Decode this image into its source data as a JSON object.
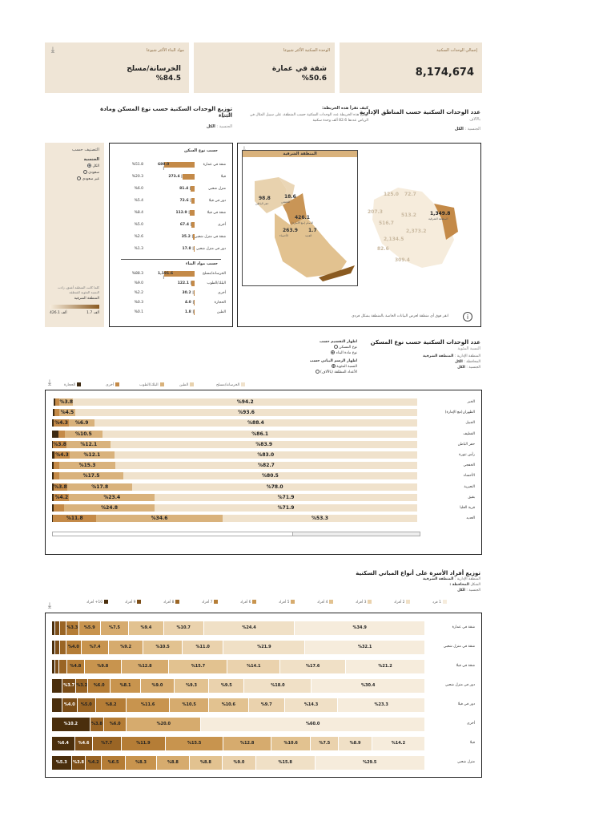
{
  "kpis": [
    {
      "label": "إجمالي الوحدات السكنية",
      "value": "8,174,674"
    },
    {
      "label": "الوحدة السكنية الأكثر شيوعا",
      "value": "شقة في عمارة",
      "value2": "%50.6"
    },
    {
      "label": "مواد البناء الأكثر شيوعا",
      "value": "الخرسانة/مسلح",
      "value2": "%84.5"
    }
  ],
  "sec1": {
    "title_right": "عدد الوحدات السكنية حسب المناطق الإدارية",
    "sub_right": "بالآلاف",
    "filter_right": "الكل",
    "filter_right_label": "الجنسية :",
    "howto_title": "كيف تقرأ هذه الخريطة:",
    "howto_text": "توضح هذه الخريطة عدد الوحدات السكنية حسب المنطقة، على سبيل المثال في الرياض عددها 82.6 ألف وحدة سكنية",
    "title_left": "توزيع الوحدات السكنية حسب نوع المسكن ومادة البناء",
    "sub_left": "بالآلاف",
    "filter_left": "الكل",
    "filter_left_label": "الجنسية :"
  },
  "classify": {
    "title": "التصنيف حسب",
    "group": "الجنسية",
    "options": [
      "الكل",
      "سعودي",
      "غير سعودي"
    ],
    "note": "كلما كانت المنطقة أغمق، زادت النسبة المئوية للمنطقة",
    "region": "المنطقة الشرقية",
    "scale_min": "1.7 ألف",
    "scale_max": "426.1 ألف"
  },
  "dwelling": {
    "title": "حسب نوع السكن",
    "rows": [
      {
        "label": "شقة في عمارة",
        "value": "689.0",
        "pct": "%51.8",
        "frac": 1.0
      },
      {
        "label": "فيلا",
        "value": "273.4",
        "pct": "%20.3",
        "frac": 0.4
      },
      {
        "label": "منزل شعبي",
        "value": "81.4",
        "pct": "%6.0",
        "frac": 0.12
      },
      {
        "label": "دور في فيلا",
        "value": "72.6",
        "pct": "%5.4",
        "frac": 0.11
      },
      {
        "label": "شقة في فيلا",
        "value": "112.9",
        "pct": "%8.4",
        "frac": 0.16
      },
      {
        "label": "أخرى",
        "value": "67.4",
        "pct": "%5.0",
        "frac": 0.1
      },
      {
        "label": "شقة في منزل شعبي",
        "value": "35.2",
        "pct": "%2.6",
        "frac": 0.05
      },
      {
        "label": "دور في منزل شعبي",
        "value": "17.8",
        "pct": "%1.3",
        "frac": 0.03
      }
    ]
  },
  "material": {
    "title": "حسب مواد البناء",
    "rows": [
      {
        "label": "الخرسانة/مسلح",
        "value": "1,191.6",
        "pct": "%88.3",
        "frac": 1.0
      },
      {
        "label": "البلك/الطوب",
        "value": "122.1",
        "pct": "%9.0",
        "frac": 0.1
      },
      {
        "label": "أخرى",
        "value": "30.2",
        "pct": "%2.2",
        "frac": 0.03
      },
      {
        "label": "الحجارة",
        "value": "4.0",
        "pct": "%0.3",
        "frac": 0.005
      },
      {
        "label": "الطين",
        "value": "1.8",
        "pct": "%0.1",
        "frac": 0.002
      }
    ]
  },
  "map": {
    "title": "المنطقة الشرقية",
    "info": "انقر فوق أي منطقة لعرض البيانات الخاصة بالمنطقة بشكل فردي",
    "labels": [
      {
        "v": "98.8",
        "n": "حفر الباطن"
      },
      {
        "v": "18.6",
        "n": "الخفجي"
      },
      {
        "v": "426.1",
        "n": "الدمام (مع الأمارة)"
      },
      {
        "v": "263.9",
        "n": "الأحساء"
      },
      {
        "v": "1.7",
        "n": "العديد"
      }
    ],
    "ksa": [
      {
        "v": "125.0"
      },
      {
        "v": "72.7"
      },
      {
        "v": "207.3"
      },
      {
        "v": "513.2"
      },
      {
        "v": "516.7"
      },
      {
        "v": "1,349.8",
        "n": "المنطقة الشرقية"
      },
      {
        "v": "2,134.5"
      },
      {
        "v": "2,373.2"
      },
      {
        "v": "82.6"
      },
      {
        "v": "309.4"
      }
    ]
  },
  "sec2": {
    "title": "عدد الوحدات السكنية حسب نوع المسكن",
    "sub": "النسبة المئوية",
    "f1_label": "المنطقة الإدارية :",
    "f1": "المنطقة الشرقية",
    "f2_label": "المحافظة :",
    "f2": "الكل",
    "f3_label": "الجنسية :",
    "f3": "الكل",
    "opt1_title": "اظهار التقسيم حسب",
    "opt1": [
      "نوع المسكن",
      "نوع مادة البناء"
    ],
    "opt2_title": "اظهار الرسم البياني حسب",
    "opt2": [
      "النسبة المئوية",
      "الأعداد المطلقة (بالآلاف)"
    ],
    "legend": [
      "الخرسانة/مسلح",
      "الطين",
      "البلك/الطوب",
      "أخرى",
      "الحجارة"
    ],
    "colors": [
      "#f0e2cc",
      "#e8d2ae",
      "#d9b27c",
      "#c48a48",
      "#3d2a12"
    ]
  },
  "chart2_data": {
    "type": "bar",
    "rows": [
      {
        "label": "الخبر",
        "segs": [
          94.2,
          0,
          3.8,
          1.2,
          0.4
        ],
        "labels": [
          "%94.2",
          "",
          "%3.8",
          "",
          ""
        ]
      },
      {
        "label": "الظهران(مع الإمارة)",
        "segs": [
          93.6,
          0,
          4.5,
          1.2,
          0.5
        ],
        "labels": [
          "%93.6",
          "",
          "%4.5",
          "",
          ""
        ]
      },
      {
        "label": "الجبيل",
        "segs": [
          88.4,
          0,
          6.9,
          4.3,
          0.4
        ],
        "labels": [
          "%88.4",
          "",
          "%6.9",
          "%4.3",
          ""
        ]
      },
      {
        "label": "القطيف",
        "segs": [
          86.1,
          0,
          10.5,
          1.7,
          1.7
        ],
        "labels": [
          "%86.1",
          "",
          "%10.5",
          "",
          ""
        ]
      },
      {
        "label": "حفر الباطن",
        "segs": [
          83.9,
          0,
          12.1,
          3.8,
          0.2
        ],
        "labels": [
          "%83.9",
          "",
          "%12.1",
          "%3.8",
          ""
        ]
      },
      {
        "label": "رأس تنورة",
        "segs": [
          83.0,
          0,
          12.1,
          4.3,
          0.6
        ],
        "labels": [
          "%83.0",
          "",
          "%12.1",
          "%4.3",
          ""
        ]
      },
      {
        "label": "الخفجي",
        "segs": [
          82.7,
          0,
          15.3,
          1.6,
          0.4
        ],
        "labels": [
          "%82.7",
          "",
          "%15.3",
          "",
          ""
        ]
      },
      {
        "label": "الأحساء",
        "segs": [
          80.5,
          0,
          17.5,
          1.6,
          0.4
        ],
        "labels": [
          "%80.5",
          "",
          "%17.5",
          "",
          ""
        ]
      },
      {
        "label": "النعيرية",
        "segs": [
          78.0,
          0,
          17.8,
          3.8,
          0.4
        ],
        "labels": [
          "%78.0",
          "",
          "%17.8",
          "%3.8",
          ""
        ]
      },
      {
        "label": "بقيق",
        "segs": [
          71.9,
          0,
          23.4,
          4.2,
          0.5
        ],
        "labels": [
          "%71.9",
          "",
          "%23.4",
          "%4.2",
          ""
        ]
      },
      {
        "label": "قرية العليا",
        "segs": [
          71.9,
          0,
          24.8,
          2.9,
          0.4
        ],
        "labels": [
          "%71.9",
          "",
          "%24.8",
          "",
          ""
        ]
      },
      {
        "label": "العديد",
        "segs": [
          53.3,
          0,
          34.6,
          11.8,
          0.3
        ],
        "labels": [
          "%53.3",
          "",
          "%34.6",
          "%11.8",
          ""
        ]
      }
    ]
  },
  "sec3": {
    "title": "توزيع أفراد الأسرة على أنواع المباني السكنية",
    "f1_label": "المنطقة الإدارية :",
    "f1": "المنطقة الشرقية",
    "f2_label": "الشكل",
    "f2": "المحافظة :",
    "f3_label": "الجنسية :",
    "f3": "الكل",
    "legend": [
      "1 فرد",
      "2 أفراد",
      "3 أفراد",
      "4 أفراد",
      "5 أفراد",
      "6 أفراد",
      "7 أفراد",
      "8 أفراد",
      "9 أفراد",
      "10+ أفراد"
    ],
    "colors": [
      "#f6ecdc",
      "#f0e0c6",
      "#ead2ad",
      "#e2c290",
      "#d6ab6e",
      "#c8944e",
      "#b57d36",
      "#9a6525",
      "#7b4d18",
      "#4a2e0c"
    ]
  },
  "chart3_data": {
    "type": "bar",
    "rows": [
      {
        "label": "شقة في عمارة",
        "segs": [
          34.9,
          24.4,
          10.7,
          9.4,
          7.5,
          5.9,
          3.3,
          1.8,
          1.2,
          0.9
        ]
      },
      {
        "label": "شقة في منزل شعبي",
        "segs": [
          32.1,
          21.9,
          11.0,
          10.5,
          9.2,
          7.4,
          4.0,
          1.8,
          1.2,
          0.9
        ]
      },
      {
        "label": "شقة في فيلا",
        "segs": [
          21.2,
          17.6,
          14.1,
          15.7,
          12.8,
          9.8,
          4.8,
          2.0,
          1.2,
          0.8
        ]
      },
      {
        "label": "دور في منزل شعبي",
        "segs": [
          30.4,
          18.0,
          9.5,
          9.3,
          9.0,
          8.1,
          6.0,
          3.2,
          3.7,
          2.8
        ]
      },
      {
        "label": "دور في فيلا",
        "segs": [
          23.3,
          14.3,
          9.7,
          10.6,
          10.5,
          11.6,
          8.2,
          5.0,
          4.0,
          2.8
        ]
      },
      {
        "label": "أخرى",
        "segs": [
          60.0,
          0,
          0,
          0,
          20.0,
          0,
          6.0,
          3.8,
          0,
          10.2
        ]
      },
      {
        "label": "فيلا",
        "segs": [
          14.2,
          8.9,
          7.5,
          10.6,
          12.8,
          15.5,
          11.9,
          7.7,
          4.6,
          6.4
        ]
      },
      {
        "label": "منزل شعبي",
        "segs": [
          29.5,
          15.8,
          9.0,
          8.8,
          8.8,
          8.3,
          6.5,
          4.2,
          3.8,
          5.3
        ]
      }
    ]
  }
}
